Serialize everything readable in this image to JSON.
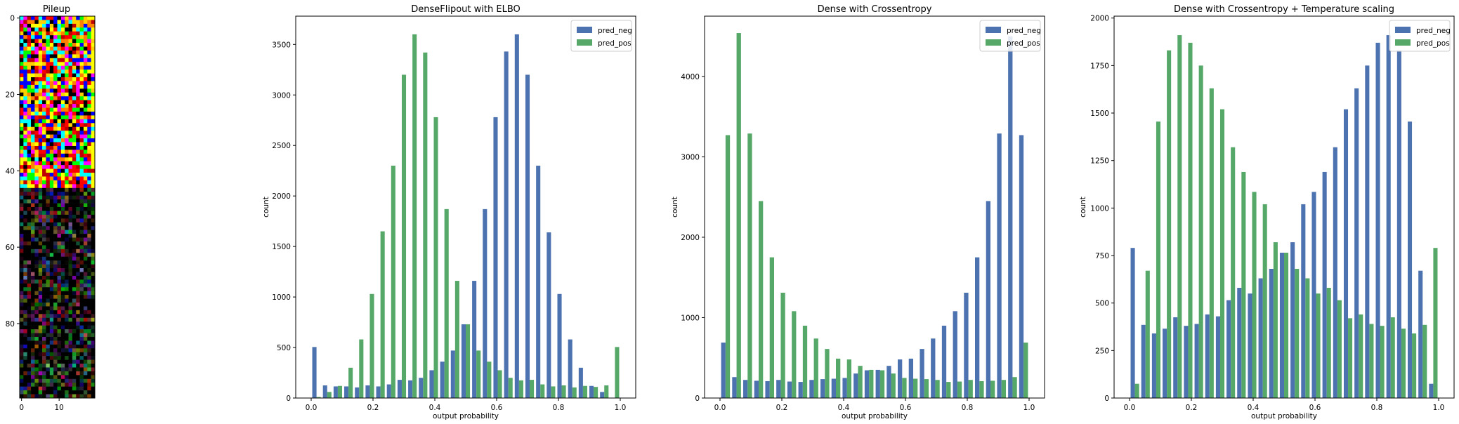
{
  "colors": {
    "pred_neg": "#4c72b0",
    "pred_pos": "#55a868"
  },
  "chart_data": [
    {
      "type": "heatmap",
      "title": "Pileup",
      "xticks": [
        0,
        10
      ],
      "yticks": [
        0,
        20,
        40,
        60,
        80
      ],
      "xlim": [
        -0.5,
        19.5
      ],
      "ylim": [
        99.5,
        -0.5
      ],
      "description_rows": 100,
      "description_cols": 20
    },
    {
      "type": "bar",
      "title": "DenseFlipout with ELBO",
      "xlabel": "output probability",
      "ylabel": "count",
      "xlim": [
        -0.05,
        1.05
      ],
      "ylim": [
        0,
        3780
      ],
      "xticks": [
        0.0,
        0.2,
        0.4,
        0.6,
        0.8,
        1.0
      ],
      "yticks": [
        0,
        500,
        1000,
        1500,
        2000,
        2500,
        3000,
        3500
      ],
      "legend": "top-right",
      "series": [
        {
          "name": "pred_neg",
          "values": [
            505,
            125,
            115,
            115,
            105,
            125,
            115,
            135,
            180,
            175,
            200,
            275,
            360,
            470,
            730,
            1160,
            1870,
            2780,
            3430,
            3600,
            3200,
            2300,
            1640,
            1030,
            580,
            300,
            120,
            60,
            0
          ]
        },
        {
          "name": "pred_pos",
          "values": [
            10,
            60,
            120,
            300,
            580,
            1030,
            1650,
            2300,
            3200,
            3600,
            3420,
            2780,
            1870,
            1160,
            730,
            470,
            360,
            275,
            200,
            175,
            180,
            135,
            115,
            125,
            105,
            120,
            110,
            125,
            505
          ]
        }
      ]
    },
    {
      "type": "bar",
      "title": "Dense with Crossentropy",
      "xlabel": "output probability",
      "ylabel": "count",
      "xlim": [
        -0.05,
        1.05
      ],
      "ylim": [
        0,
        4750
      ],
      "xticks": [
        0.0,
        0.2,
        0.4,
        0.6,
        0.8,
        1.0
      ],
      "yticks": [
        0,
        1000,
        2000,
        3000,
        4000
      ],
      "legend": "top-right",
      "series": [
        {
          "name": "pred_neg",
          "values": [
            690,
            260,
            225,
            215,
            210,
            225,
            205,
            200,
            225,
            235,
            240,
            250,
            305,
            345,
            350,
            400,
            480,
            490,
            610,
            740,
            900,
            1080,
            1310,
            1750,
            2450,
            3290,
            4500,
            3270
          ]
        },
        {
          "name": "pred_pos",
          "values": [
            3270,
            4540,
            3290,
            2450,
            1750,
            1310,
            1080,
            900,
            740,
            610,
            490,
            480,
            400,
            350,
            345,
            305,
            250,
            240,
            235,
            225,
            200,
            205,
            225,
            210,
            215,
            225,
            260,
            690
          ]
        }
      ]
    },
    {
      "type": "bar",
      "title": "Dense with Crossentropy + Temperature scaling",
      "xlabel": "output probability",
      "ylabel": "count",
      "xlim": [
        -0.05,
        1.05
      ],
      "ylim": [
        0,
        2010
      ],
      "xticks": [
        0.0,
        0.2,
        0.4,
        0.6,
        0.8,
        1.0
      ],
      "yticks": [
        0,
        250,
        500,
        750,
        1000,
        1250,
        1500,
        1750,
        2000
      ],
      "legend": "top-right",
      "series": [
        {
          "name": "pred_neg",
          "values": [
            790,
            385,
            340,
            365,
            425,
            380,
            390,
            440,
            430,
            515,
            580,
            550,
            630,
            680,
            765,
            820,
            1020,
            1085,
            1190,
            1320,
            1520,
            1630,
            1750,
            1870,
            1910,
            1830,
            1455,
            670,
            75
          ]
        },
        {
          "name": "pred_pos",
          "values": [
            75,
            670,
            1455,
            1830,
            1910,
            1870,
            1750,
            1630,
            1520,
            1320,
            1190,
            1085,
            1020,
            820,
            765,
            680,
            630,
            550,
            580,
            515,
            420,
            440,
            390,
            380,
            425,
            365,
            340,
            385,
            790
          ]
        }
      ]
    }
  ]
}
